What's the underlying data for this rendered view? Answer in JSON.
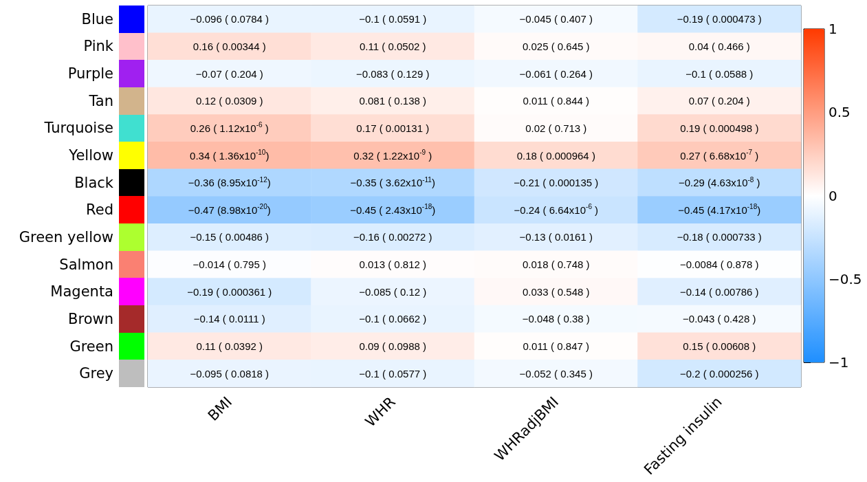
{
  "chart_data": {
    "type": "heatmap",
    "categories": [
      "BMI",
      "WHR",
      "WHRadjBMI",
      "Fasting insulin"
    ],
    "y_categories": [
      "Blue",
      "Pink",
      "Purple",
      "Tan",
      "Turquoise",
      "Yellow",
      "Black",
      "Red",
      "Green yellow",
      "Salmon",
      "Magenta",
      "Brown",
      "Green",
      "Grey"
    ],
    "cells": [
      [
        -0.096,
        -0.1,
        -0.045,
        -0.19
      ],
      [
        0.16,
        0.11,
        0.025,
        0.04
      ],
      [
        -0.07,
        -0.083,
        -0.061,
        -0.1
      ],
      [
        0.12,
        0.081,
        0.011,
        0.07
      ],
      [
        0.26,
        0.17,
        0.02,
        0.19
      ],
      [
        0.34,
        0.32,
        0.18,
        0.27
      ],
      [
        -0.36,
        -0.35,
        -0.21,
        -0.29
      ],
      [
        -0.47,
        -0.45,
        -0.24,
        -0.45
      ],
      [
        -0.15,
        -0.16,
        -0.13,
        -0.18
      ],
      [
        -0.014,
        0.013,
        0.018,
        -0.0084
      ],
      [
        -0.19,
        -0.085,
        0.033,
        -0.14
      ],
      [
        -0.14,
        -0.1,
        -0.048,
        -0.043
      ],
      [
        0.11,
        0.09,
        0.011,
        0.15
      ],
      [
        -0.095,
        -0.1,
        -0.052,
        -0.2
      ]
    ],
    "cell_labels": [
      [
        "−0.096 ( 0.0784 )",
        "−0.1 ( 0.0591 )",
        "−0.045 ( 0.407 )",
        "−0.19 ( 0.000473 )"
      ],
      [
        "0.16 ( 0.00344 )",
        "0.11 ( 0.0502 )",
        "0.025 ( 0.645 )",
        "0.04 ( 0.466 )"
      ],
      [
        "−0.07 ( 0.204 )",
        "−0.083 ( 0.129 )",
        "−0.061 ( 0.264 )",
        "−0.1 ( 0.0588 )"
      ],
      [
        "0.12 ( 0.0309 )",
        "0.081 ( 0.138 )",
        "0.011 ( 0.844 )",
        "0.07 ( 0.204 )"
      ],
      [
        "0.26 ( 1.12x10$^{-6}$ )",
        "0.17 ( 0.00131 )",
        "0.02 ( 0.713 )",
        "0.19 ( 0.000498 )"
      ],
      [
        "0.34 ( 1.36x10$^{-10}$)",
        "0.32 ( 1.22x10$^{-9}$ )",
        "0.18 ( 0.000964 )",
        "0.27 ( 6.68x10$^{-7}$ )"
      ],
      [
        "−0.36 (8.95x10$^{-12}$)",
        "−0.35 ( 3.62x10$^{-11}$)",
        "−0.21 ( 0.000135 )",
        "−0.29 (4.63x10$^{-8}$ )"
      ],
      [
        "−0.47 (8.98x10$^{-20}$)",
        "−0.45 ( 2.43x10$^{-18}$)",
        "−0.24 ( 6.64x10$^{-6}$ )",
        "−0.45 (4.17x10$^{-18}$)"
      ],
      [
        "−0.15 ( 0.00486 )",
        "−0.16 ( 0.00272 )",
        "−0.13 ( 0.0161 )",
        "−0.18 ( 0.000733 )"
      ],
      [
        "−0.014 ( 0.795 )",
        "0.013 ( 0.812 )",
        "0.018 ( 0.748 )",
        "−0.0084 ( 0.878 )"
      ],
      [
        "−0.19 ( 0.000361 )",
        "−0.085 ( 0.12 )",
        "0.033 ( 0.548 )",
        "−0.14 ( 0.00786 )"
      ],
      [
        "−0.14 ( 0.0111 )",
        "−0.1 ( 0.0662 )",
        "−0.048 ( 0.38 )",
        "−0.043 ( 0.428 )"
      ],
      [
        "0.11 ( 0.0392 )",
        "0.09 ( 0.0988 )",
        "0.011 ( 0.847 )",
        "0.15 ( 0.00608 )"
      ],
      [
        "−0.095 ( 0.0818 )",
        "−0.1 ( 0.0577 )",
        "−0.052 ( 0.345 )",
        "−0.2 ( 0.000256 )"
      ]
    ],
    "clim": [
      -1,
      1
    ],
    "cticks": [
      {
        "value": -1,
        "label": "−1"
      },
      {
        "value": -0.5,
        "label": "−0.5"
      },
      0,
      0.5,
      1
    ]
  }
}
